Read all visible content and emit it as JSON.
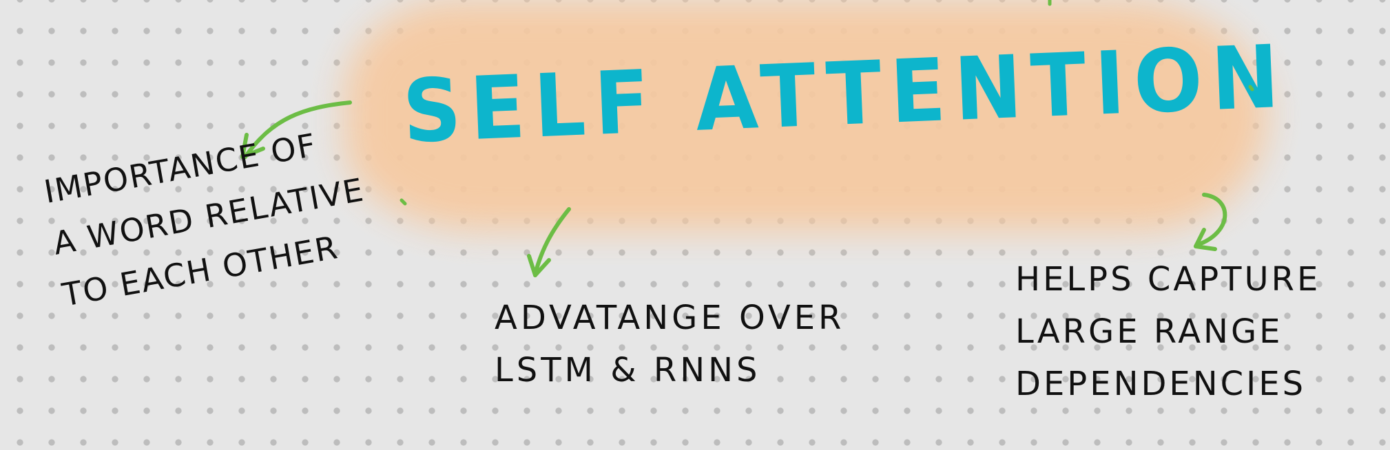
{
  "title": "SELF ATTENTION",
  "colors": {
    "background": "#e6e6e6",
    "dots": "#bdbdbd",
    "highlight": "#f6c9a0",
    "title": "#0db5cc",
    "arrows": "#6cbd45",
    "ink": "#111111"
  },
  "notes": {
    "left": {
      "lines": [
        "IMPORTANCE OF",
        "A WORD RELATIVE",
        "TO EACH OTHER"
      ]
    },
    "middle": {
      "lines": [
        "ADVATANGE OVER",
        "LSTM & RNNs"
      ]
    },
    "right": {
      "lines": [
        "HELPS CAPTURE",
        "LARGE RANGE",
        "DEPENDENCIES"
      ]
    }
  },
  "icons": [
    "curved-arrow-icon",
    "down-arrow-icon",
    "hook-arrow-icon"
  ]
}
